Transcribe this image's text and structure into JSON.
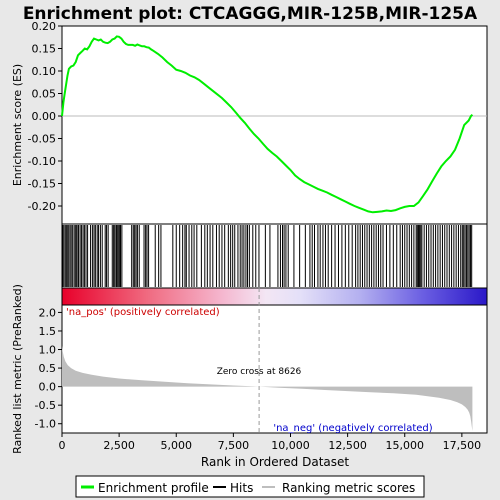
{
  "chart_data": {
    "type": "line",
    "title": "Enrichment plot: CTCAGGG,MIR-125B,MIR-125A",
    "panels": {
      "enrichment": {
        "ylabel": "Enrichment score (ES)",
        "ylim": [
          -0.24,
          0.2
        ],
        "yticks": [
          "0.20",
          "0.15",
          "0.10",
          "0.05",
          "0.00",
          "-0.05",
          "-0.10",
          "-0.15",
          "-0.20"
        ],
        "ytick_values": [
          0.2,
          0.15,
          0.1,
          0.05,
          0.0,
          -0.05,
          -0.1,
          -0.15,
          -0.2
        ],
        "series": [
          {
            "name": "Enrichment profile",
            "color": "#00ee00",
            "x": [
              0,
              60,
              120,
              180,
              240,
              300,
              400,
              500,
              600,
              700,
              800,
              900,
              1000,
              1100,
              1200,
              1300,
              1400,
              1500,
              1600,
              1700,
              1800,
              1900,
              2000,
              2100,
              2200,
              2300,
              2400,
              2500,
              2600,
              2700,
              2800,
              2900,
              3000,
              3100,
              3200,
              3300,
              3400,
              3500,
              3600,
              3700,
              3800,
              3900,
              4000,
              4200,
              4400,
              4600,
              4800,
              5000,
              5200,
              5400,
              5600,
              5800,
              6000,
              6200,
              6400,
              6600,
              6800,
              7000,
              7200,
              7400,
              7600,
              7800,
              8000,
              8200,
              8400,
              8600,
              8800,
              9000,
              9200,
              9400,
              9600,
              9800,
              10000,
              10200,
              10400,
              10600,
              10800,
              11000,
              11200,
              11400,
              11600,
              11800,
              12000,
              12200,
              12400,
              12600,
              12800,
              13000,
              13200,
              13400,
              13600,
              13800,
              14000,
              14200,
              14400,
              14600,
              14800,
              15000,
              15200,
              15400,
              15600,
              15800,
              16000,
              16200,
              16400,
              16600,
              16800,
              17000,
              17200,
              17400,
              17600,
              17800,
              17900,
              17960
            ],
            "y": [
              0.0,
              0.03,
              0.05,
              0.07,
              0.09,
              0.105,
              0.11,
              0.112,
              0.12,
              0.135,
              0.14,
              0.145,
              0.15,
              0.148,
              0.155,
              0.165,
              0.172,
              0.17,
              0.168,
              0.17,
              0.165,
              0.163,
              0.162,
              0.165,
              0.17,
              0.172,
              0.177,
              0.176,
              0.172,
              0.165,
              0.16,
              0.158,
              0.158,
              0.158,
              0.156,
              0.159,
              0.157,
              0.155,
              0.155,
              0.153,
              0.152,
              0.148,
              0.145,
              0.138,
              0.13,
              0.12,
              0.112,
              0.103,
              0.1,
              0.096,
              0.09,
              0.086,
              0.08,
              0.072,
              0.064,
              0.056,
              0.048,
              0.04,
              0.03,
              0.02,
              0.008,
              -0.004,
              -0.015,
              -0.028,
              -0.04,
              -0.05,
              -0.062,
              -0.073,
              -0.082,
              -0.09,
              -0.1,
              -0.11,
              -0.12,
              -0.132,
              -0.14,
              -0.147,
              -0.152,
              -0.157,
              -0.162,
              -0.166,
              -0.17,
              -0.175,
              -0.18,
              -0.185,
              -0.19,
              -0.195,
              -0.2,
              -0.204,
              -0.208,
              -0.212,
              -0.214,
              -0.213,
              -0.212,
              -0.21,
              -0.211,
              -0.209,
              -0.205,
              -0.202,
              -0.2,
              -0.2,
              -0.192,
              -0.178,
              -0.163,
              -0.145,
              -0.128,
              -0.112,
              -0.1,
              -0.09,
              -0.075,
              -0.05,
              -0.02,
              -0.01,
              0.0,
              0.003
            ]
          }
        ]
      },
      "hits": {
        "label": "Hits",
        "positions": [
          30,
          80,
          140,
          190,
          250,
          300,
          360,
          430,
          480,
          560,
          610,
          660,
          720,
          790,
          850,
          920,
          980,
          1050,
          1120,
          1250,
          1330,
          1400,
          1460,
          1540,
          1600,
          1680,
          1760,
          1890,
          1950,
          2020,
          2200,
          2260,
          2310,
          2370,
          2410,
          2460,
          2510,
          2560,
          2620,
          3050,
          3120,
          3180,
          3240,
          3300,
          3380,
          3590,
          3660,
          3720,
          3790,
          4080,
          4230,
          4330,
          4850,
          5000,
          5150,
          5280,
          5380,
          5440,
          5560,
          5680,
          5780,
          5900,
          6100,
          6250,
          6360,
          6480,
          6600,
          6760,
          6880,
          7000,
          7120,
          7280,
          7380,
          7470,
          7560,
          7700,
          7800,
          7880,
          7960,
          8050,
          8120,
          8200,
          8350,
          8480,
          8620,
          8900,
          9100,
          9450,
          9560,
          9650,
          9720,
          9800,
          9900,
          10150,
          10400,
          10650,
          10850,
          10950,
          11050,
          11200,
          11300,
          11420,
          11530,
          11650,
          11800,
          11950,
          12100,
          12250,
          12400,
          12550,
          12700,
          12850,
          12950,
          13050,
          13150,
          13250,
          13350,
          13450,
          13550,
          13650,
          13750,
          13850,
          13950,
          14050,
          14200,
          14350,
          14500,
          14650,
          14800,
          14900,
          15000,
          15100,
          15200,
          15300,
          15400,
          15500,
          15550,
          15600,
          15650,
          15700,
          15750,
          15850,
          15950,
          16050,
          16150,
          16250,
          16350,
          16450,
          16550,
          16650,
          16750,
          16850,
          16950,
          17050,
          17150,
          17250,
          17350,
          17450,
          17520,
          17580,
          17640,
          17700,
          17760,
          17820,
          17880,
          17930
        ]
      },
      "ranked_metric": {
        "ylabel": "Ranked list metric (PreRanked)",
        "xlabel": "Rank in Ordered Dataset",
        "ylim": [
          -1.25,
          2.2
        ],
        "yticks": [
          "2.0",
          "1.5",
          "1.0",
          "0.5",
          "0.0",
          "-0.5",
          "-1.0"
        ],
        "ytick_values": [
          2.0,
          1.5,
          1.0,
          0.5,
          0.0,
          -0.5,
          -1.0
        ],
        "xticks": [
          "0",
          "2,500",
          "5,000",
          "7,500",
          "10,000",
          "12,500",
          "15,000",
          "17,500"
        ],
        "xtick_values": [
          0,
          2500,
          5000,
          7500,
          10000,
          12500,
          15000,
          17500
        ],
        "xlim": [
          0,
          18600
        ],
        "series": [
          {
            "name": "Ranking metric scores",
            "color": "#bebebe",
            "x": [
              0,
              30,
              80,
              150,
              250,
              400,
              600,
              900,
              1300,
              1800,
              2500,
              3500,
              4500,
              5500,
              6500,
              7500,
              8626,
              9500,
              10500,
              11500,
              12500,
              13500,
              14500,
              15500,
              16000,
              16500,
              17000,
              17300,
              17500,
              17650,
              17750,
              17820,
              17870,
              17910,
              17940,
              17960
            ],
            "y": [
              1.1,
              0.95,
              0.8,
              0.68,
              0.58,
              0.5,
              0.43,
              0.37,
              0.32,
              0.27,
              0.22,
              0.17,
              0.13,
              0.09,
              0.06,
              0.03,
              0.0,
              -0.03,
              -0.06,
              -0.09,
              -0.12,
              -0.15,
              -0.18,
              -0.22,
              -0.26,
              -0.3,
              -0.36,
              -0.42,
              -0.48,
              -0.55,
              -0.62,
              -0.7,
              -0.8,
              -0.95,
              -1.1,
              -1.2
            ]
          }
        ],
        "zero_cross": 8626,
        "annotations": {
          "zero_cross": "Zero cross at 8626",
          "pos": "'na_pos' (positively correlated)",
          "neg": "'na_neg' (negatively correlated)"
        }
      }
    },
    "legend": {
      "placement": "bottom",
      "items": [
        {
          "label": "Enrichment profile",
          "color": "#00ee00"
        },
        {
          "label": "Hits",
          "color": "#000000"
        },
        {
          "label": "Ranking metric scores",
          "color": "#bebebe"
        }
      ]
    },
    "colors": {
      "frame": "#000000",
      "background": "#ffffff",
      "outer_background": "#e8e8e8",
      "profile": "#00ee00",
      "metric": "#bebebe",
      "pos_text": "#cc0000",
      "neg_text": "#0000cc",
      "bar_pos": "#e8002a",
      "bar_neg": "#3b2bd8"
    }
  }
}
